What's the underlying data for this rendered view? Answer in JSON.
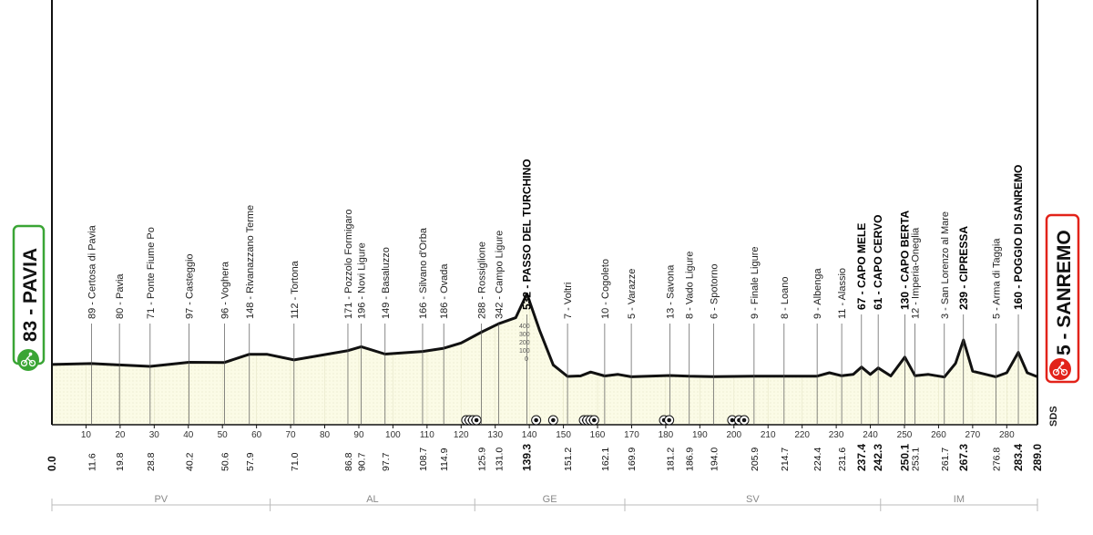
{
  "chart_data": {
    "type": "area",
    "xlabel": "",
    "ylabel": "",
    "xlim": [
      0,
      289
    ],
    "x_ticks": [
      10,
      20,
      30,
      40,
      50,
      60,
      70,
      80,
      90,
      100,
      110,
      120,
      130,
      140,
      150,
      160,
      170,
      180,
      190,
      200,
      210,
      220,
      230,
      240,
      250,
      260,
      270,
      280
    ],
    "elevation_scale_labels": [
      "400",
      "300",
      "200",
      "100",
      "0"
    ],
    "start": {
      "name": "PAVIA",
      "altitude": "83",
      "label": "83 - PAVIA",
      "color": "#3aa535"
    },
    "finish": {
      "name": "SANREMO",
      "altitude": "5",
      "label": "5 - SANREMO",
      "color": "#e2231a"
    },
    "profile": {
      "x": [
        0,
        11.6,
        19.8,
        28.8,
        40.2,
        50.6,
        57.9,
        63,
        71.0,
        86.8,
        90.7,
        97.7,
        108.7,
        114.9,
        120,
        125.9,
        131.0,
        136,
        139.3,
        143,
        147,
        151.2,
        155,
        158,
        162.1,
        166,
        169.9,
        175,
        181.2,
        186.9,
        194.0,
        205.9,
        214.7,
        224.4,
        228,
        231.6,
        235,
        237.4,
        240,
        242.3,
        246,
        250.1,
        253.1,
        257,
        261.7,
        265,
        267.3,
        270,
        276.8,
        280,
        283.4,
        286,
        289.0
      ],
      "y": [
        83,
        89,
        80,
        71,
        97,
        96,
        148,
        148,
        112,
        171,
        196,
        149,
        166,
        186,
        220,
        288,
        342,
        380,
        532,
        300,
        80,
        7,
        10,
        35,
        10,
        20,
        5,
        9,
        13,
        8,
        6,
        9,
        8,
        9,
        30,
        11,
        20,
        67,
        20,
        61,
        10,
        130,
        12,
        20,
        3,
        90,
        239,
        40,
        5,
        30,
        160,
        30,
        5
      ],
      "ylim": [
        -300,
        2400
      ]
    },
    "points": [
      {
        "km": "11.6",
        "x": 11.6,
        "label": "89 - Certosa di Pavia",
        "bold": false
      },
      {
        "km": "19.8",
        "x": 19.8,
        "label": "80 - Pavia",
        "bold": false
      },
      {
        "km": "28.8",
        "x": 28.8,
        "label": "71 - Ponte Fiume Po",
        "bold": false
      },
      {
        "km": "40.2",
        "x": 40.2,
        "label": "97 - Casteggio",
        "bold": false
      },
      {
        "km": "50.6",
        "x": 50.6,
        "label": "96 - Voghera",
        "bold": false
      },
      {
        "km": "57.9",
        "x": 57.9,
        "label": "148 - Rivanazzano Terme",
        "bold": false
      },
      {
        "km": "71.0",
        "x": 71.0,
        "label": "112 - Tortona",
        "bold": false
      },
      {
        "km": "86.8",
        "x": 86.8,
        "label": "171 - Pozzolo Formigaro",
        "bold": false
      },
      {
        "km": "90.7",
        "x": 90.7,
        "label": "196 - Novi Ligure",
        "bold": false
      },
      {
        "km": "97.7",
        "x": 97.7,
        "label": "149 - Basaluzzo",
        "bold": false
      },
      {
        "km": "108.7",
        "x": 108.7,
        "label": "166 - Silvano d'Orba",
        "bold": false
      },
      {
        "km": "114.9",
        "x": 114.9,
        "label": "186 - Ovada",
        "bold": false
      },
      {
        "km": "125.9",
        "x": 125.9,
        "label": "288 - Rossiglione",
        "bold": false
      },
      {
        "km": "131.0",
        "x": 131.0,
        "label": "342 - Campo Ligure",
        "bold": false
      },
      {
        "km": "139.3",
        "x": 139.3,
        "label": "532 - PASSO DEL TURCHINO",
        "bold": true
      },
      {
        "km": "151.2",
        "x": 151.2,
        "label": "7 - Voltri",
        "bold": false
      },
      {
        "km": "162.1",
        "x": 162.1,
        "label": "10 - Cogoleto",
        "bold": false
      },
      {
        "km": "169.9",
        "x": 169.9,
        "label": "5 - Varazze",
        "bold": false
      },
      {
        "km": "181.2",
        "x": 181.2,
        "label": "13 - Savona",
        "bold": false
      },
      {
        "km": "186.9",
        "x": 186.9,
        "label": "8 - Vado Ligure",
        "bold": false
      },
      {
        "km": "194.0",
        "x": 194.0,
        "label": "6 - Spotorno",
        "bold": false
      },
      {
        "km": "205.9",
        "x": 205.9,
        "label": "9 - Finale Ligure",
        "bold": false
      },
      {
        "km": "214.7",
        "x": 214.7,
        "label": "8 - Loano",
        "bold": false
      },
      {
        "km": "224.4",
        "x": 224.4,
        "label": "9 - Albenga",
        "bold": false
      },
      {
        "km": "231.6",
        "x": 231.6,
        "label": "11 - Alassio",
        "bold": false
      },
      {
        "km": "237.4",
        "x": 237.4,
        "label": "67 - CAPO MELE",
        "bold": true
      },
      {
        "km": "242.3",
        "x": 242.3,
        "label": "61 - CAPO CERVO",
        "bold": true
      },
      {
        "km": "250.1",
        "x": 250.1,
        "label": "130 - CAPO BERTA",
        "bold": true
      },
      {
        "km": "253.1",
        "x": 253.1,
        "label": "12 - Imperia-Oneglia",
        "bold": false
      },
      {
        "km": "261.7",
        "x": 261.7,
        "label": "3 - San Lorenzo al Mare",
        "bold": false
      },
      {
        "km": "267.3",
        "x": 267.3,
        "label": "239 - CIPRESSA",
        "bold": true
      },
      {
        "km": "276.8",
        "x": 276.8,
        "label": "5 - Arma di Taggia",
        "bold": false
      },
      {
        "km": "283.4",
        "x": 283.4,
        "label": "160 - POGGIO DI SANREMO",
        "bold": true
      }
    ],
    "axis_ends": {
      "start": "0.0",
      "end": "289.0"
    },
    "provinces": [
      {
        "name": "PV",
        "from": 0,
        "to": 64
      },
      {
        "name": "AL",
        "from": 64,
        "to": 124
      },
      {
        "name": "GE",
        "from": 124,
        "to": 168
      },
      {
        "name": "SV",
        "from": 168,
        "to": 243
      },
      {
        "name": "IM",
        "from": 243,
        "to": 289
      }
    ],
    "tunnels": [
      121.5,
      122.5,
      123.5,
      124.5,
      142,
      147,
      156,
      157,
      158,
      159,
      179.5,
      181,
      199.5,
      201.5,
      203
    ]
  },
  "logo": {
    "text": "SDS",
    "icon": "cyclist-icon"
  }
}
